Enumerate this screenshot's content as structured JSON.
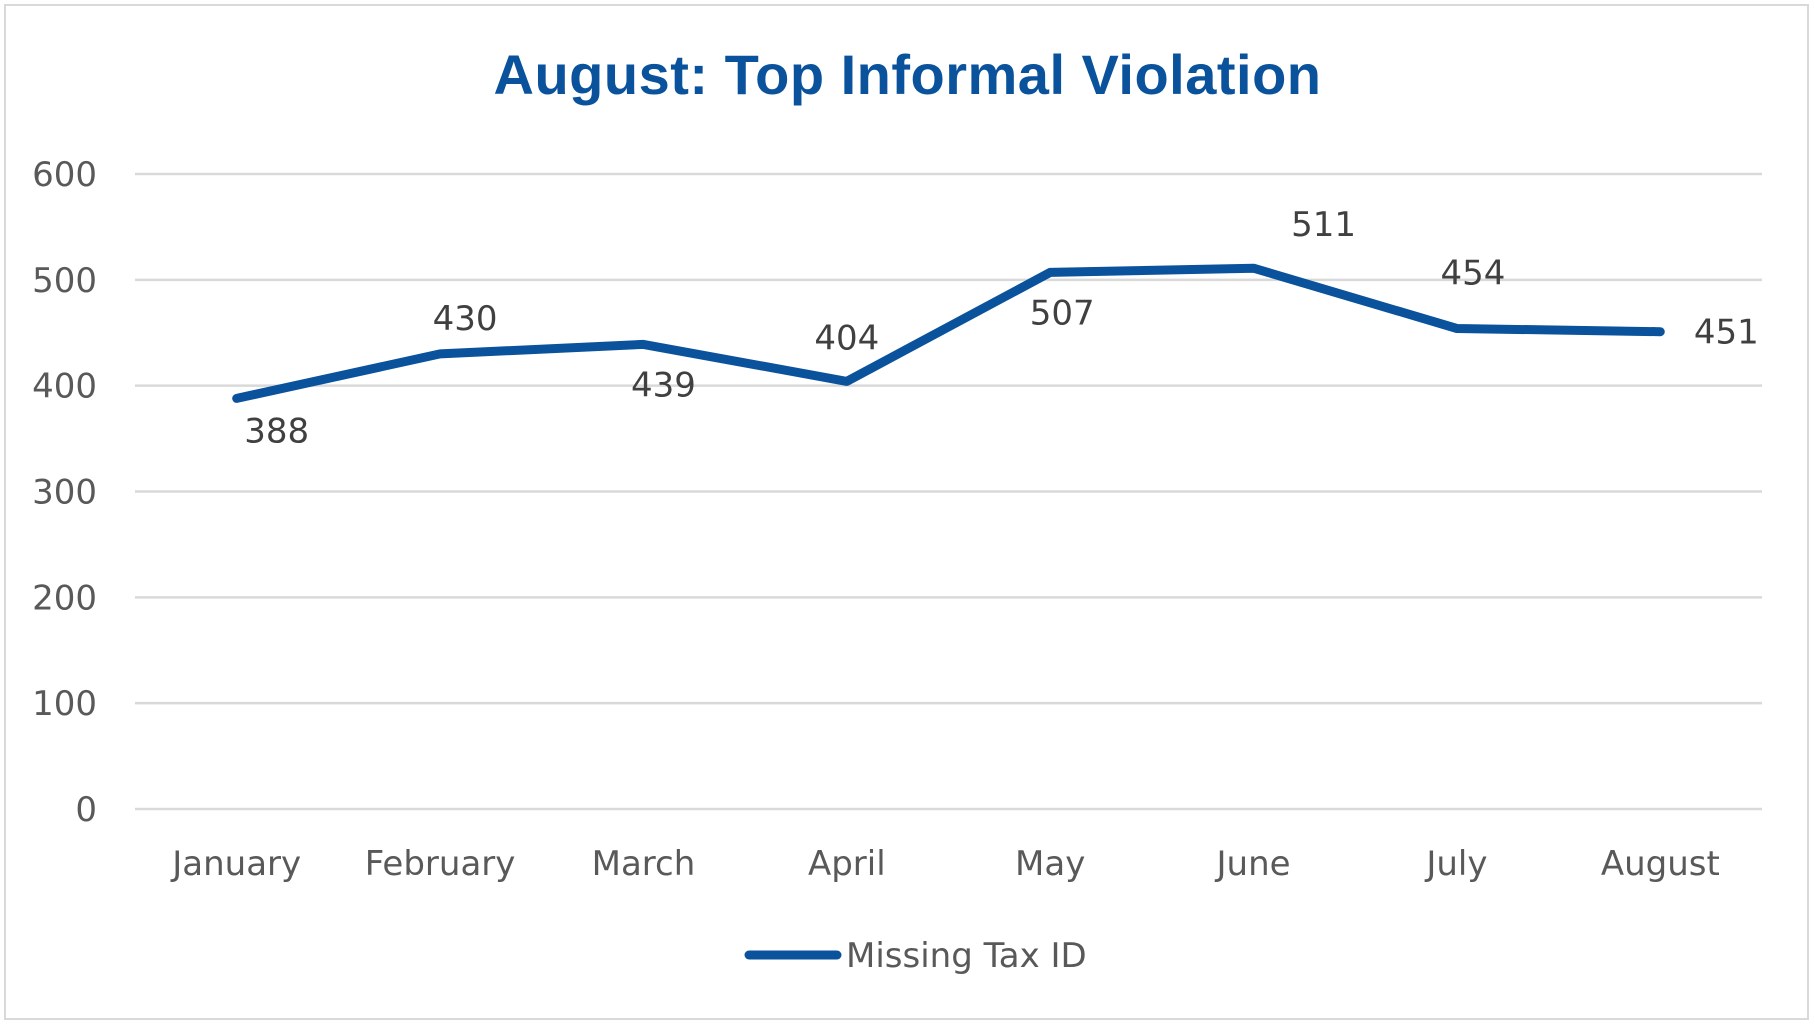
{
  "chart_data": {
    "type": "line",
    "title": "August: Top Informal Violation",
    "categories": [
      "January",
      "February",
      "March",
      "April",
      "May",
      "June",
      "July",
      "August"
    ],
    "series": [
      {
        "name": "Missing Tax ID",
        "values": [
          388,
          430,
          439,
          404,
          507,
          511,
          454,
          451
        ],
        "color": "#0a529b"
      }
    ],
    "y_ticks": [
      "0",
      "100",
      "200",
      "300",
      "400",
      "500",
      "600"
    ],
    "ylim": [
      0,
      600
    ],
    "grid": true,
    "legend_position": "bottom",
    "data_labels": true
  }
}
